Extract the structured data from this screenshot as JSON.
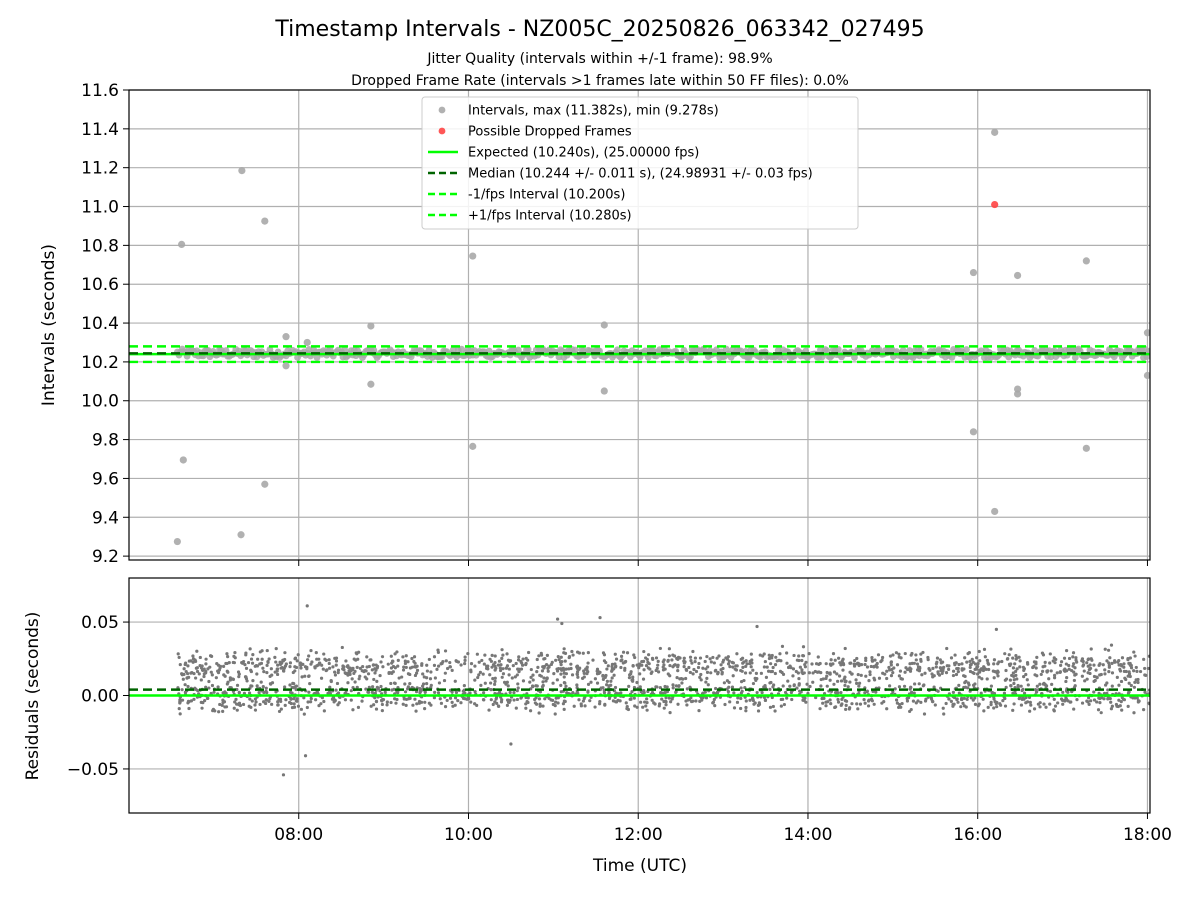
{
  "chart_data": {
    "type": "scatter",
    "title": "Timestamp Intervals - NZ005C_20250826_063342_027495",
    "subtitle_lines": [
      "Jitter Quality (intervals within +/-1 frame): 98.9%",
      "Dropped Frame Rate (intervals >1 frames late within 50 FF files): 0.0%"
    ],
    "xlabel": "Time (UTC)",
    "x_unit": "hours UTC",
    "x_ticks": [
      {
        "value": 8,
        "label": "08:00"
      },
      {
        "value": 10,
        "label": "10:00"
      },
      {
        "value": 12,
        "label": "12:00"
      },
      {
        "value": 14,
        "label": "14:00"
      },
      {
        "value": 16,
        "label": "16:00"
      },
      {
        "value": 18,
        "label": "18:00"
      }
    ],
    "xlim": [
      6.0,
      18.03
    ],
    "grid": true,
    "panels": [
      {
        "name": "intervals",
        "ylabel": "Intervals (seconds)",
        "ylim": [
          9.18,
          11.6
        ],
        "y_ticks": [
          {
            "value": 9.2,
            "label": "9.2"
          },
          {
            "value": 9.4,
            "label": "9.4"
          },
          {
            "value": 9.6,
            "label": "9.6"
          },
          {
            "value": 9.8,
            "label": "9.8"
          },
          {
            "value": 10.0,
            "label": "10.0"
          },
          {
            "value": 10.2,
            "label": "10.2"
          },
          {
            "value": 10.4,
            "label": "10.4"
          },
          {
            "value": 10.6,
            "label": "10.6"
          },
          {
            "value": 10.8,
            "label": "10.8"
          },
          {
            "value": 11.0,
            "label": "11.0"
          },
          {
            "value": 11.2,
            "label": "11.2"
          },
          {
            "value": 11.4,
            "label": "11.4"
          },
          {
            "value": 11.6,
            "label": "11.6"
          }
        ],
        "outliers": [
          {
            "x": 6.57,
            "y": 9.275
          },
          {
            "x": 6.62,
            "y": 10.805
          },
          {
            "x": 6.64,
            "y": 9.695
          },
          {
            "x": 7.33,
            "y": 11.185
          },
          {
            "x": 7.32,
            "y": 9.31
          },
          {
            "x": 7.6,
            "y": 10.925
          },
          {
            "x": 7.6,
            "y": 9.57
          },
          {
            "x": 7.85,
            "y": 10.33
          },
          {
            "x": 7.85,
            "y": 10.18
          },
          {
            "x": 8.1,
            "y": 10.3
          },
          {
            "x": 8.85,
            "y": 10.385
          },
          {
            "x": 8.85,
            "y": 10.085
          },
          {
            "x": 10.05,
            "y": 10.745
          },
          {
            "x": 10.05,
            "y": 9.765
          },
          {
            "x": 11.6,
            "y": 10.39
          },
          {
            "x": 11.6,
            "y": 10.05
          },
          {
            "x": 15.95,
            "y": 10.66
          },
          {
            "x": 15.95,
            "y": 9.84
          },
          {
            "x": 16.2,
            "y": 11.382
          },
          {
            "x": 16.2,
            "y": 9.43
          },
          {
            "x": 16.47,
            "y": 10.645
          },
          {
            "x": 16.47,
            "y": 10.06
          },
          {
            "x": 16.47,
            "y": 10.035
          },
          {
            "x": 17.28,
            "y": 10.72
          },
          {
            "x": 17.28,
            "y": 9.755
          },
          {
            "x": 18.0,
            "y": 10.35
          },
          {
            "x": 18.0,
            "y": 10.13
          }
        ],
        "dropped_frames": [
          {
            "x": 16.2,
            "y": 11.01
          }
        ],
        "dense_band": {
          "x_start": 6.57,
          "x_end": 18.03,
          "center": 10.244,
          "spread": 0.028
        },
        "reference_lines": [
          {
            "name": "Expected (10.240s), (25.00000 fps)",
            "y": 10.24,
            "color": "#00ff00",
            "style": "solid"
          },
          {
            "name": "Median (10.244 +/- 0.011 s), (24.98931 +/- 0.03 fps)",
            "y": 10.244,
            "color": "#006400",
            "style": "dashed"
          },
          {
            "name": "-1/fps Interval (10.200s)",
            "y": 10.2,
            "color": "#00ff00",
            "style": "dashed"
          },
          {
            "name": "+1/fps Interval (10.280s)",
            "y": 10.28,
            "color": "#00ff00",
            "style": "dashed"
          }
        ],
        "legend": {
          "placement": "upper-center",
          "entries": [
            {
              "label": "Intervals, max (11.382s), min (9.278s)",
              "kind": "marker",
              "color": "#a9a9a9"
            },
            {
              "label": "Possible Dropped Frames",
              "kind": "marker",
              "color": "#ff4444"
            },
            {
              "label": "Expected (10.240s), (25.00000 fps)",
              "kind": "line",
              "color": "#00ff00",
              "dash": false
            },
            {
              "label": "Median (10.244 +/- 0.011 s), (24.98931 +/- 0.03 fps)",
              "kind": "line",
              "color": "#006400",
              "dash": true
            },
            {
              "label": "-1/fps Interval (10.200s)",
              "kind": "line",
              "color": "#00ff00",
              "dash": true
            },
            {
              "label": "+1/fps Interval (10.280s)",
              "kind": "line",
              "color": "#00ff00",
              "dash": true
            }
          ]
        }
      },
      {
        "name": "residuals",
        "ylabel": "Residuals (seconds)",
        "ylim": [
          -0.08,
          0.08
        ],
        "y_ticks": [
          {
            "value": -0.05,
            "label": "−0.05"
          },
          {
            "value": 0.0,
            "label": "0.00"
          },
          {
            "value": 0.05,
            "label": "0.05"
          }
        ],
        "scatter_summary": {
          "x_start": 6.57,
          "x_end": 18.03,
          "upper_cluster": 0.02,
          "lower_cluster": 0.0,
          "spread": 0.012,
          "point_color": "#777777"
        },
        "extra_points": [
          {
            "x": 8.1,
            "y": 0.061
          },
          {
            "x": 8.08,
            "y": -0.041
          },
          {
            "x": 7.82,
            "y": -0.054
          },
          {
            "x": 11.05,
            "y": 0.052
          },
          {
            "x": 11.55,
            "y": 0.053
          },
          {
            "x": 11.1,
            "y": 0.049
          },
          {
            "x": 16.22,
            "y": 0.045
          },
          {
            "x": 13.4,
            "y": 0.047
          },
          {
            "x": 10.5,
            "y": -0.033
          }
        ],
        "reference_lines": [
          {
            "name": "expected",
            "y": 0.0,
            "color": "#00ff00",
            "style": "solid"
          },
          {
            "name": "median",
            "y": 0.004,
            "color": "#006400",
            "style": "dashed"
          }
        ]
      }
    ]
  }
}
